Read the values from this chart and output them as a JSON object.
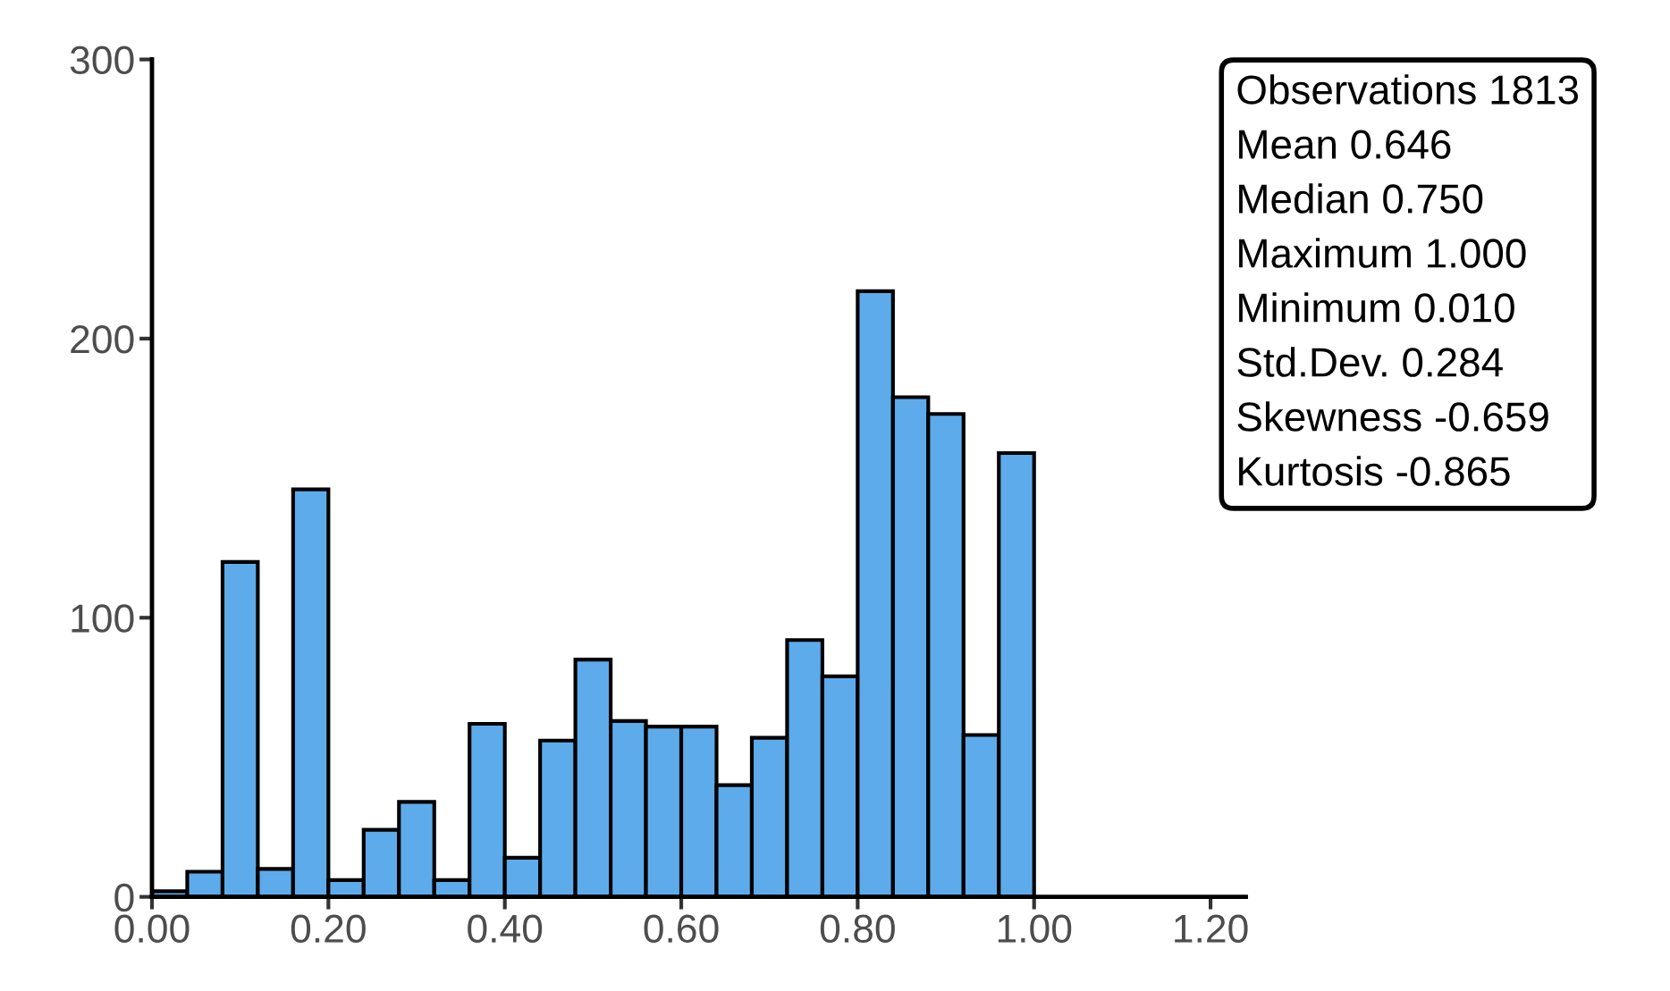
{
  "chart_data": {
    "type": "histogram",
    "bins": [
      0.0,
      0.04,
      0.08,
      0.12,
      0.16,
      0.2,
      0.24,
      0.28,
      0.32,
      0.36,
      0.4,
      0.44,
      0.48,
      0.52,
      0.56,
      0.6,
      0.64,
      0.68,
      0.72,
      0.76,
      0.8,
      0.84,
      0.88,
      0.92,
      0.96,
      1.0
    ],
    "values": [
      2,
      9,
      120,
      10,
      146,
      6,
      24,
      34,
      6,
      62,
      14,
      56,
      85,
      63,
      61,
      61,
      40,
      57,
      92,
      79,
      217,
      179,
      173,
      58,
      159
    ],
    "color": "#5eabeb",
    "xlim": [
      0,
      1.24
    ],
    "xticks": [
      {
        "value": 0,
        "label": "0.00"
      },
      {
        "value": 0.2,
        "label": "0.20"
      },
      {
        "value": 0.4,
        "label": "0.40"
      },
      {
        "value": 0.6,
        "label": "0.60"
      },
      {
        "value": 0.8,
        "label": "0.80"
      },
      {
        "value": 1.0,
        "label": "1.00"
      },
      {
        "value": 1.2,
        "label": "1.20"
      }
    ],
    "ylim": [
      0,
      300
    ],
    "yticks": [
      0,
      100,
      200,
      300
    ],
    "grid": false,
    "legend": false,
    "annotations": [
      "Observations 1813",
      "Mean 0.646",
      "Median 0.750",
      "Maximum 1.000",
      "Minimum 0.010",
      "Std.Dev. 0.284",
      "Skewness -0.659",
      "Kurtosis -0.865"
    ]
  }
}
